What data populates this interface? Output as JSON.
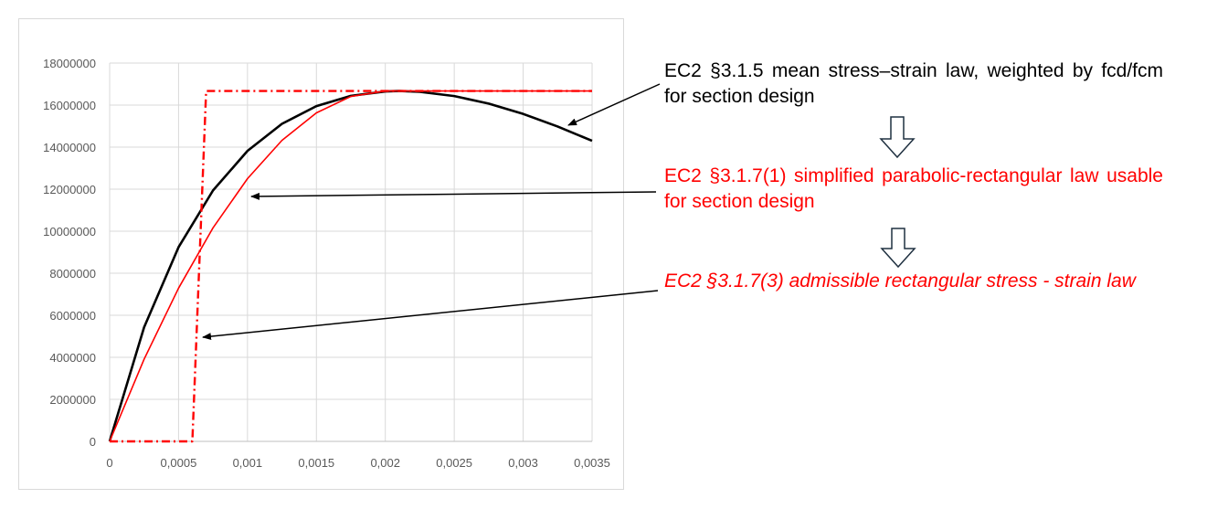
{
  "chart_data": {
    "type": "line",
    "xlim": [
      0,
      0.0035
    ],
    "ylim": [
      0,
      18000000
    ],
    "grid": true,
    "x_ticks": [
      "0",
      "0,0005",
      "0,001",
      "0,0015",
      "0,002",
      "0,0025",
      "0,003",
      "0,0035"
    ],
    "x_tick_values": [
      0,
      0.0005,
      0.001,
      0.0015,
      0.002,
      0.0025,
      0.003,
      0.0035
    ],
    "y_ticks": [
      "0",
      "2000000",
      "4000000",
      "6000000",
      "8000000",
      "10000000",
      "12000000",
      "14000000",
      "16000000",
      "18000000"
    ],
    "y_tick_values": [
      0,
      2000000,
      4000000,
      6000000,
      8000000,
      10000000,
      12000000,
      14000000,
      16000000,
      18000000
    ],
    "series": [
      {
        "style": "solid-thick",
        "color": "#000000",
        "x": [
          0,
          0.00025,
          0.0005,
          0.00075,
          0.001,
          0.00125,
          0.0015,
          0.00175,
          0.002,
          0.0021,
          0.00225,
          0.0025,
          0.00275,
          0.003,
          0.00325,
          0.0035
        ],
        "y": [
          0,
          5430000,
          9240000,
          11940000,
          13820000,
          15110000,
          15950000,
          16440000,
          16650000,
          16670000,
          16630000,
          16430000,
          16070000,
          15580000,
          14980000,
          14300000
        ]
      },
      {
        "style": "solid-thin",
        "color": "#ff0000",
        "x": [
          0,
          0.00025,
          0.0005,
          0.00075,
          0.001,
          0.00125,
          0.0015,
          0.00175,
          0.002,
          0.0035
        ],
        "y": [
          0,
          3910000,
          7290000,
          10160000,
          12500000,
          14320000,
          15630000,
          16410000,
          16670000,
          16670000
        ]
      },
      {
        "style": "dash-dot",
        "color": "#ff0000",
        "x": [
          0,
          0.0006,
          0.0007,
          0.0035
        ],
        "y": [
          0,
          0,
          16670000,
          16670000
        ]
      }
    ]
  },
  "annotations": [
    {
      "text": "EC2 §3.1.5 mean stress–strain law, weighted by fcd/fcm for section design",
      "color": "#000000"
    },
    {
      "text": "EC2 §3.1.7(1) simplified parabolic-rectangular law usable for section design",
      "color": "#ff0000"
    },
    {
      "text": "EC2 §3.1.7(3) admissible rectangular stress - strain law",
      "color": "#ff0000"
    }
  ]
}
